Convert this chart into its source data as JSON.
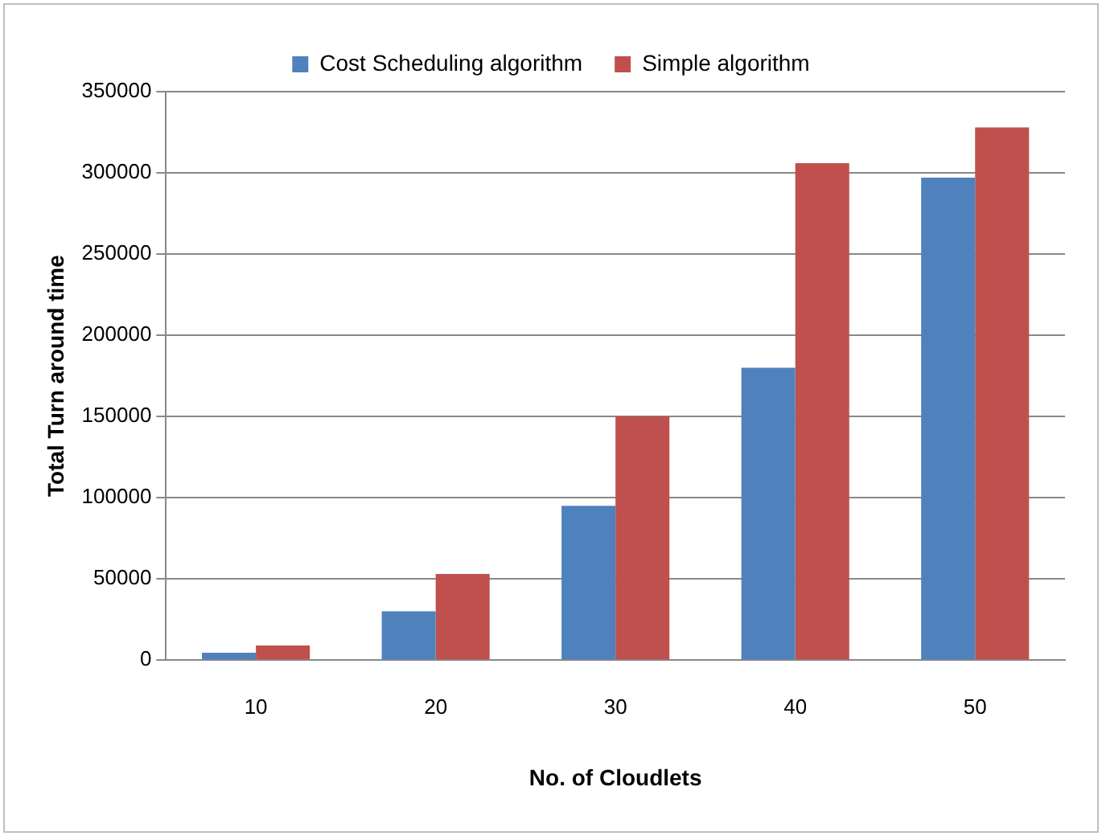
{
  "chart_data": {
    "type": "bar",
    "xlabel": "No. of Cloudlets",
    "ylabel": "Total Turn around time",
    "categories": [
      "10",
      "20",
      "30",
      "40",
      "50"
    ],
    "series": [
      {
        "name": "Cost Scheduling algorithm",
        "color": "#4f81bd",
        "values": [
          4600,
          30000,
          95000,
          180000,
          297000
        ]
      },
      {
        "name": "Simple algorithm",
        "color": "#c0504d",
        "values": [
          9000,
          53000,
          150000,
          306000,
          328000
        ]
      }
    ],
    "ylim": [
      0,
      350000
    ],
    "yticks": [
      0,
      50000,
      100000,
      150000,
      200000,
      250000,
      300000,
      350000
    ],
    "grid": "y",
    "legend": "top"
  }
}
